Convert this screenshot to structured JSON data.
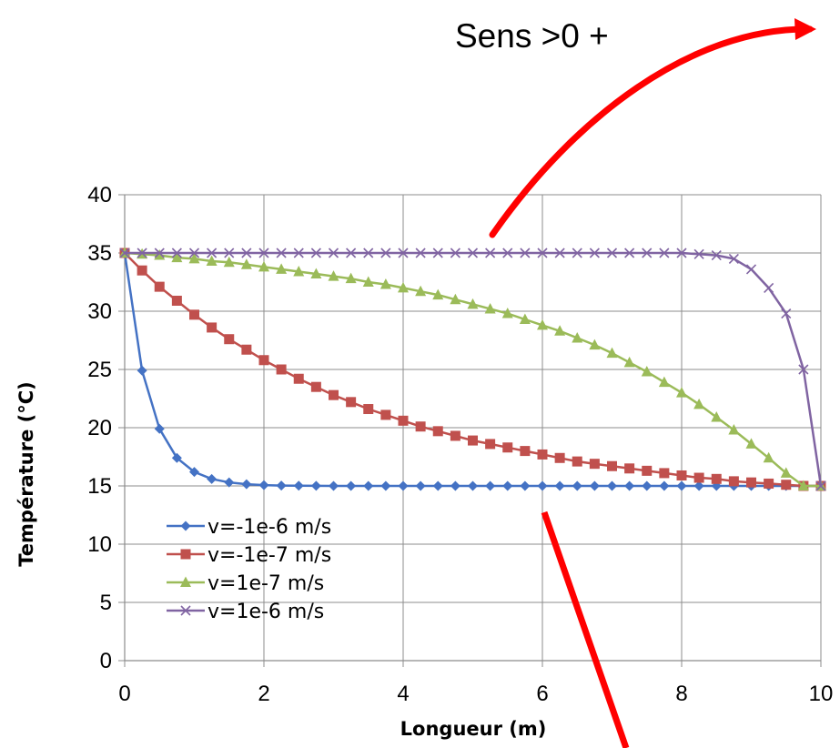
{
  "chart_data": {
    "type": "line",
    "title": "",
    "xlabel": "Longueur (m)",
    "ylabel": "Température (°C)",
    "xlim": [
      0,
      10
    ],
    "ylim": [
      0,
      40
    ],
    "xticks": [
      "0",
      "2",
      "4",
      "6",
      "8",
      "10"
    ],
    "yticks": [
      "0",
      "5",
      "10",
      "15",
      "20",
      "25",
      "30",
      "35",
      "40"
    ],
    "grid": true,
    "legend_position": "bottom-left",
    "x": [
      0,
      0.25,
      0.5,
      0.75,
      1,
      1.25,
      1.5,
      1.75,
      2,
      2.25,
      2.5,
      2.75,
      3,
      3.25,
      3.5,
      3.75,
      4,
      4.25,
      4.5,
      4.75,
      5,
      5.25,
      5.5,
      5.75,
      6,
      6.25,
      6.5,
      6.75,
      7,
      7.25,
      7.5,
      7.75,
      8,
      8.25,
      8.5,
      8.75,
      9,
      9.25,
      9.5,
      9.75,
      10
    ],
    "series": [
      {
        "name": "v=-1e-6 m/s",
        "color": "#4472c4",
        "marker": "diamond",
        "values": [
          35,
          24.9,
          19.9,
          17.4,
          16.2,
          15.6,
          15.3,
          15.15,
          15.07,
          15.03,
          15.02,
          15.01,
          15,
          15,
          15,
          15,
          15,
          15,
          15,
          15,
          15,
          15,
          15,
          15,
          15,
          15,
          15,
          15,
          15,
          15,
          15,
          15,
          15,
          15,
          15,
          15,
          15,
          15,
          15,
          15,
          15
        ]
      },
      {
        "name": "v=-1e-7 m/s",
        "color": "#c0504d",
        "marker": "square",
        "values": [
          35,
          33.5,
          32.1,
          30.9,
          29.7,
          28.6,
          27.6,
          26.7,
          25.8,
          25.0,
          24.2,
          23.5,
          22.8,
          22.2,
          21.6,
          21.1,
          20.6,
          20.1,
          19.7,
          19.3,
          18.9,
          18.6,
          18.3,
          18.0,
          17.7,
          17.4,
          17.1,
          16.9,
          16.7,
          16.5,
          16.3,
          16.1,
          15.9,
          15.7,
          15.6,
          15.4,
          15.3,
          15.2,
          15.1,
          15.0,
          15.0
        ]
      },
      {
        "name": "v=1e-7 m/s",
        "color": "#9bbb59",
        "marker": "triangle",
        "values": [
          35,
          34.9,
          34.8,
          34.6,
          34.5,
          34.3,
          34.2,
          34.0,
          33.8,
          33.6,
          33.4,
          33.2,
          33.0,
          32.8,
          32.5,
          32.3,
          32.0,
          31.7,
          31.4,
          31.0,
          30.6,
          30.2,
          29.8,
          29.3,
          28.8,
          28.3,
          27.7,
          27.1,
          26.4,
          25.6,
          24.8,
          23.9,
          23.0,
          22.0,
          20.9,
          19.8,
          18.6,
          17.4,
          16.1,
          15.0,
          15.0
        ]
      },
      {
        "name": "v=1e-6 m/s",
        "color": "#8064a2",
        "marker": "x",
        "values": [
          35,
          35,
          35,
          35,
          35,
          35,
          35,
          35,
          35,
          35,
          35,
          35,
          35,
          35,
          35,
          35,
          35,
          35,
          35,
          35,
          35,
          35,
          35,
          35,
          35,
          35,
          35,
          35,
          35,
          35,
          35,
          35,
          35,
          34.9,
          34.8,
          34.5,
          33.6,
          32.0,
          29.8,
          25.0,
          15.0
        ]
      }
    ]
  },
  "annotations": {
    "top_label": "Sens >0 +",
    "arrow_color": "#ff0000"
  }
}
